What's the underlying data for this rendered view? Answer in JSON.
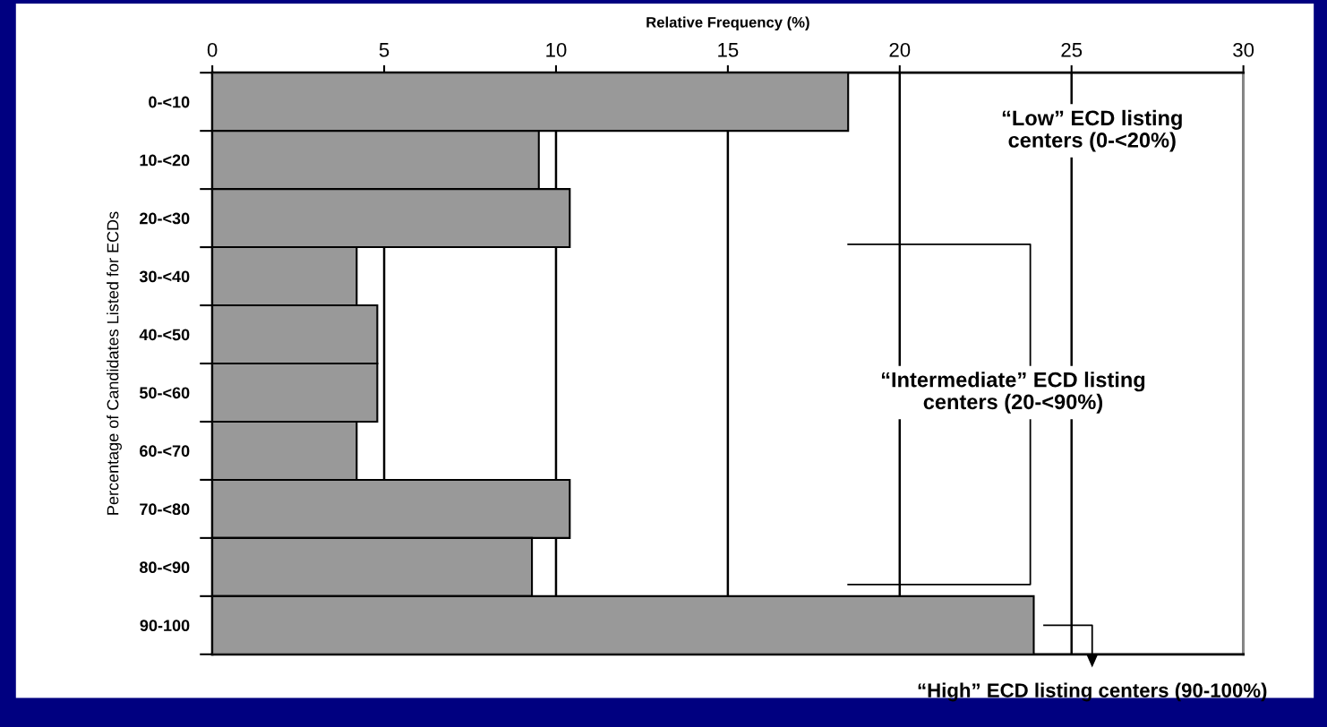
{
  "chart_data": {
    "type": "bar",
    "orientation": "horizontal",
    "xlabel": "Relative Frequency (%)",
    "ylabel": "Percentage of Candidates Listed for ECDs",
    "categories": [
      "0-<10",
      "10-<20",
      "20-<30",
      "30-<40",
      "40-<50",
      "50-<60",
      "60-<70",
      "70-<80",
      "80-<90",
      "90-100"
    ],
    "values": [
      18.5,
      9.5,
      10.4,
      4.2,
      4.8,
      4.8,
      4.2,
      10.4,
      9.3,
      23.9
    ],
    "color": "#999999",
    "xlim": [
      0,
      30
    ],
    "xticks": [
      0,
      5,
      10,
      15,
      20,
      25,
      30
    ],
    "grid": "x",
    "annotations": [
      "“Low” ECD listing\ncenters (0-<20%)",
      "“Intermediate” ECD listing\ncenters (20-<90%)",
      "“High” ECD listing centers (90-100%)"
    ]
  }
}
